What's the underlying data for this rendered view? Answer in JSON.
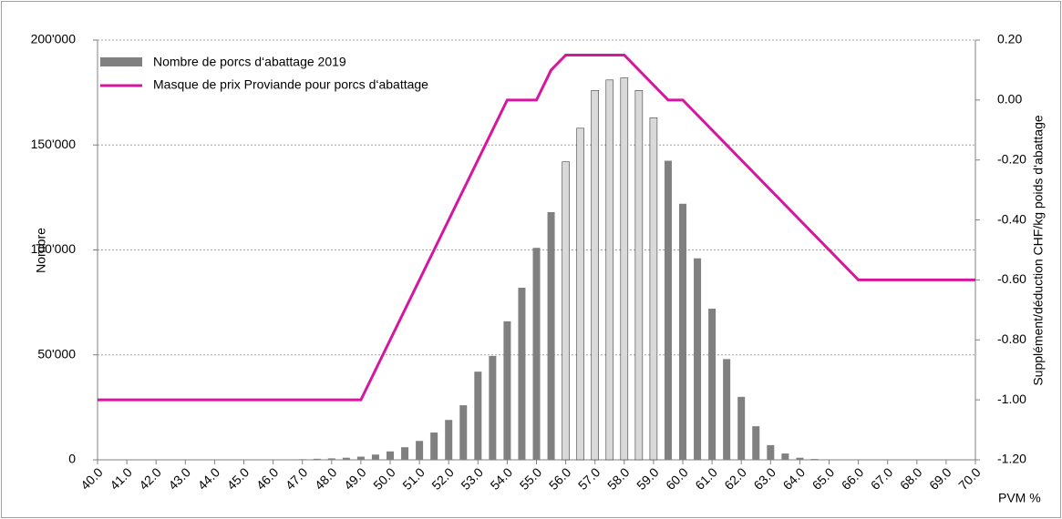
{
  "chart_data": {
    "type": "bar-line",
    "categories": [
      "40.0",
      null,
      "41.0",
      null,
      "42.0",
      null,
      "43.0",
      null,
      "44.0",
      null,
      "45.0",
      null,
      "46.0",
      null,
      "47.0",
      null,
      "48.0",
      null,
      "49.0",
      null,
      "50.0",
      null,
      "51.0",
      null,
      "52.0",
      null,
      "53.0",
      null,
      "54.0",
      null,
      "55.0",
      null,
      "56.0",
      null,
      "57.0",
      null,
      "58.0",
      null,
      "59.0",
      null,
      "60.0",
      null,
      "61.0",
      null,
      "62.0",
      null,
      "63.0",
      null,
      "64.0",
      null,
      "65.0",
      null,
      "66.0",
      null,
      "67.0",
      null,
      "68.0",
      null,
      "69.0",
      null,
      "70.0"
    ],
    "series": [
      {
        "name": "Nombre de porcs d‘abattage 2019",
        "color": "#808080",
        "highlight_color": "#d9d9d9",
        "values": [
          0,
          0,
          0,
          0,
          0,
          0,
          0,
          0,
          0,
          0,
          0,
          0,
          100,
          200,
          300,
          500,
          700,
          1000,
          1500,
          2500,
          4000,
          6000,
          9000,
          13000,
          19000,
          26000,
          42000,
          49500,
          66000,
          82000,
          101000,
          118000,
          142000,
          158000,
          176000,
          181000,
          182000,
          176000,
          163000,
          142500,
          122000,
          96000,
          72000,
          48000,
          30000,
          16000,
          7000,
          3000,
          1000,
          400,
          200,
          100,
          100,
          0,
          0,
          0,
          0,
          0,
          0,
          0,
          0
        ],
        "highlighted": [
          32,
          33,
          34,
          35,
          36,
          37,
          38
        ]
      },
      {
        "name": "Masque de prix Proviande pour porcs d‘abattage",
        "color": "#d6169e",
        "axis": "y2",
        "x": [
          40,
          49,
          54,
          55,
          55.5,
          56,
          58,
          59.5,
          60,
          66,
          70
        ],
        "values": [
          -1.0,
          -1.0,
          0.0,
          0.0,
          0.1,
          0.15,
          0.15,
          0.0,
          0.0,
          -0.6,
          -0.6
        ]
      }
    ],
    "ylabel": "Nombre",
    "y2label": "Supplément/déduction CHF/kg poids d‘abattage",
    "xlabel": "PVM %",
    "ylim": [
      0,
      200000
    ],
    "yticks": [
      0,
      {
        "value": 50000,
        "label": "50'000"
      },
      {
        "value": 100000,
        "label": "100'000"
      },
      {
        "value": 150000,
        "label": "150'000"
      },
      {
        "value": 200000,
        "label": "200'000"
      }
    ],
    "y2lim": [
      -1.2,
      0.2
    ],
    "y2ticks": [
      {
        "value": 0.2,
        "label": "0.20"
      },
      {
        "value": 0,
        "label": "0.00"
      },
      {
        "value": -0.2,
        "label": "-0.20"
      },
      {
        "value": -0.4,
        "label": "-0.40"
      },
      {
        "value": -0.6,
        "label": "-0.60"
      },
      {
        "value": -0.8,
        "label": "-0.80"
      },
      {
        "value": -1.0,
        "label": "-1.00"
      },
      {
        "value": -1.2,
        "label": "-1.20"
      }
    ],
    "grid": true,
    "legend": "upper left"
  }
}
